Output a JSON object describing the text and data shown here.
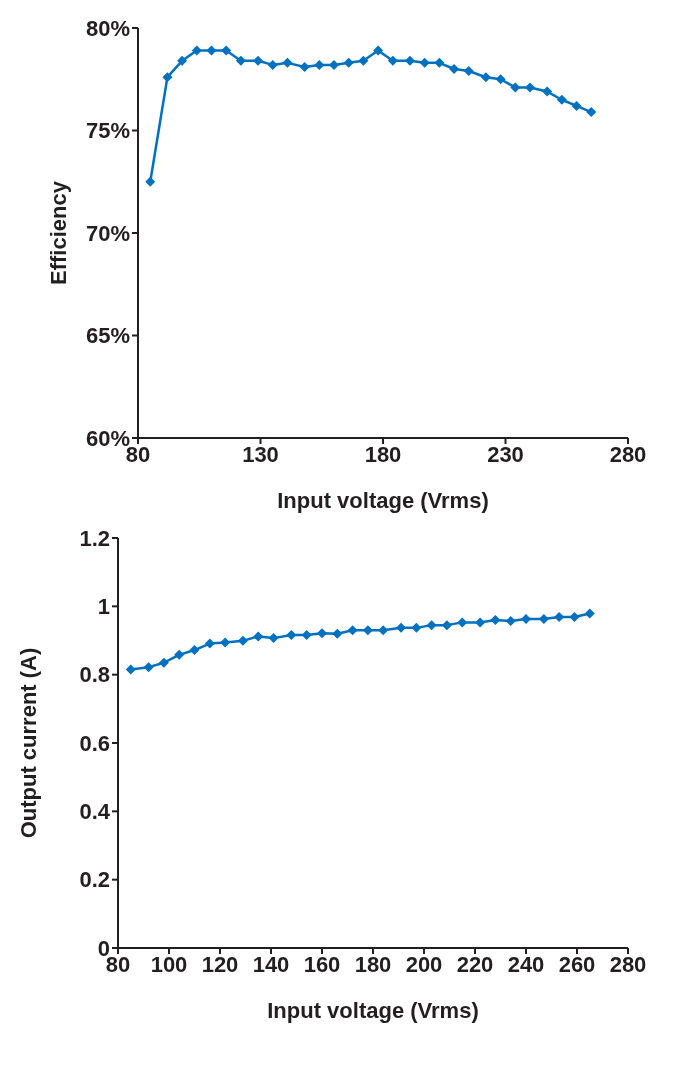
{
  "chart_data": [
    {
      "type": "line",
      "xlabel": "Input voltage (Vrms)",
      "ylabel": "Efficiency",
      "x": [
        85,
        92,
        98,
        104,
        110,
        116,
        122,
        129,
        135,
        141,
        148,
        154,
        160,
        166,
        172,
        178,
        184,
        191,
        197,
        203,
        209,
        215,
        222,
        228,
        234,
        240,
        247,
        253,
        259,
        265
      ],
      "series": [
        {
          "color": "#0070c0",
          "values": [
            72.5,
            77.6,
            78.4,
            78.9,
            78.9,
            78.9,
            78.4,
            78.4,
            78.2,
            78.3,
            78.1,
            78.2,
            78.2,
            78.3,
            78.4,
            78.9,
            78.4,
            78.4,
            78.3,
            78.3,
            78.0,
            77.9,
            77.6,
            77.5,
            77.1,
            77.1,
            76.9,
            76.5,
            76.2,
            75.9
          ]
        }
      ],
      "xlim": [
        80,
        280
      ],
      "xticks": [
        80,
        130,
        180,
        230,
        280
      ],
      "ylim": [
        60,
        80
      ],
      "yticks": [
        {
          "value": 60,
          "label": "60%"
        },
        {
          "value": 65,
          "label": "65%"
        },
        {
          "value": 70,
          "label": "70%"
        },
        {
          "value": 75,
          "label": "75%"
        },
        {
          "value": 80,
          "label": "80%"
        }
      ],
      "grid": false,
      "legend": false,
      "marker": "diamond",
      "line_style": "solid"
    },
    {
      "type": "line",
      "xlabel": "Input voltage (Vrms)",
      "ylabel": "Output current (A)",
      "x": [
        85,
        92,
        98,
        104,
        110,
        116,
        122,
        129,
        135,
        141,
        148,
        154,
        160,
        166,
        172,
        178,
        184,
        191,
        197,
        203,
        209,
        215,
        222,
        228,
        234,
        240,
        247,
        253,
        259,
        265
      ],
      "series": [
        {
          "color": "#0070c0",
          "values": [
            0.815,
            0.822,
            0.835,
            0.858,
            0.872,
            0.891,
            0.894,
            0.899,
            0.912,
            0.907,
            0.916,
            0.916,
            0.921,
            0.92,
            0.93,
            0.93,
            0.93,
            0.937,
            0.937,
            0.945,
            0.945,
            0.953,
            0.953,
            0.96,
            0.957,
            0.963,
            0.963,
            0.969,
            0.969,
            0.979
          ]
        }
      ],
      "xlim": [
        80,
        280
      ],
      "xticks": [
        80,
        100,
        120,
        140,
        160,
        180,
        200,
        220,
        240,
        260,
        280
      ],
      "ylim": [
        0,
        1.2
      ],
      "yticks": [
        0,
        0.2,
        0.4,
        0.6,
        0.8,
        1,
        1.2
      ],
      "grid": false,
      "legend": false,
      "marker": "diamond",
      "line_style": "solid"
    }
  ]
}
